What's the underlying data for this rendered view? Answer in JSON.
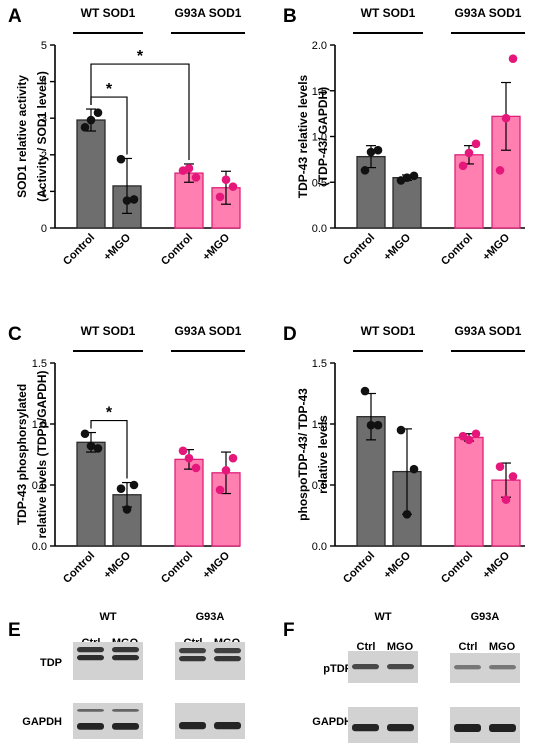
{
  "chart_data": [
    {
      "panel": "A",
      "type": "bar",
      "ylabel": [
        "SOD1 relative activity",
        "(Activity / SOD1 levels)"
      ],
      "ylim": [
        0,
        5
      ],
      "yticks": [
        "0",
        "1",
        "2",
        "3",
        "4",
        "5"
      ],
      "groups": [
        "WT SOD1",
        "G93A SOD1"
      ],
      "categories": [
        "Control",
        "+MGO",
        "Control",
        "+MGO"
      ],
      "values": [
        2.95,
        1.15,
        1.5,
        1.1
      ],
      "errors": [
        0.3,
        0.75,
        0.25,
        0.45
      ],
      "points": [
        [
          2.75,
          3.15,
          2.95
        ],
        [
          1.88,
          0.78,
          0.75
        ],
        [
          1.57,
          1.38,
          1.63
        ],
        [
          0.85,
          1.13,
          1.32
        ]
      ],
      "significance": [
        {
          "from": 0,
          "to": 1,
          "label": "*"
        },
        {
          "from": 0,
          "to": 2,
          "label": "*"
        }
      ],
      "colors": [
        "#6e6e6e",
        "#6e6e6e",
        "#ff80b0",
        "#ff80b0"
      ]
    },
    {
      "panel": "B",
      "type": "bar",
      "ylabel": [
        "TDP-43 relative levels",
        "(TDP-43/ GAPDH)"
      ],
      "ylim": [
        0,
        2
      ],
      "yticks": [
        "0.0",
        "0.5",
        "1.0",
        "1.5",
        "2.0"
      ],
      "groups": [
        "WT SOD1",
        "G93A SOD1"
      ],
      "categories": [
        "Control",
        "+MGO",
        "Control",
        "+MGO"
      ],
      "values": [
        0.78,
        0.55,
        0.8,
        1.22
      ],
      "errors": [
        0.12,
        0.03,
        0.1,
        0.37
      ],
      "points": [
        [
          0.63,
          0.85,
          0.83
        ],
        [
          0.52,
          0.57,
          0.55
        ],
        [
          0.68,
          0.92,
          0.82
        ],
        [
          0.63,
          1.85,
          1.2
        ]
      ],
      "significance": [],
      "colors": [
        "#6e6e6e",
        "#6e6e6e",
        "#ff80b0",
        "#ff80b0"
      ]
    },
    {
      "panel": "C",
      "type": "bar",
      "ylabel": [
        "TDP-43 phosphorsylated",
        "relative levels (TDPp/GAPDH)"
      ],
      "ylim": [
        0,
        1.5
      ],
      "yticks": [
        "0.0",
        "0.5",
        "1.0",
        "1.5"
      ],
      "groups": [
        "WT SOD1",
        "G93A SOD1"
      ],
      "categories": [
        "Control",
        "+MGO",
        "Control",
        "+MGO"
      ],
      "values": [
        0.85,
        0.42,
        0.71,
        0.6
      ],
      "errors": [
        0.08,
        0.1,
        0.08,
        0.17
      ],
      "points": [
        [
          0.92,
          0.8,
          0.82
        ],
        [
          0.47,
          0.5,
          0.3
        ],
        [
          0.78,
          0.64,
          0.72
        ],
        [
          0.46,
          0.72,
          0.62
        ]
      ],
      "significance": [
        {
          "from": 0,
          "to": 1,
          "label": "*"
        }
      ],
      "colors": [
        "#6e6e6e",
        "#6e6e6e",
        "#ff80b0",
        "#ff80b0"
      ]
    },
    {
      "panel": "D",
      "type": "bar",
      "ylabel": [
        "phospoTDP-43/ TDP-43",
        "relative levels"
      ],
      "ylim": [
        0,
        1.5
      ],
      "yticks": [
        "0.0",
        "0.5",
        "1.0",
        "1.5"
      ],
      "groups": [
        "WT SOD1",
        "G93A SOD1"
      ],
      "categories": [
        "Control",
        "+MGO",
        "Control",
        "+MGO"
      ],
      "values": [
        1.06,
        0.61,
        0.89,
        0.54
      ],
      "errors": [
        0.19,
        0.35,
        0.03,
        0.14
      ],
      "points": [
        [
          1.27,
          0.99,
          0.99
        ],
        [
          0.95,
          0.63,
          0.26
        ],
        [
          0.9,
          0.92,
          0.87
        ],
        [
          0.65,
          0.57,
          0.38
        ]
      ],
      "significance": [],
      "colors": [
        "#6e6e6e",
        "#6e6e6e",
        "#ff80b0",
        "#ff80b0"
      ]
    }
  ],
  "blots": [
    {
      "panel": "E",
      "groups": [
        "WT",
        "G93A"
      ],
      "lanes": [
        "Ctrl",
        "MGO"
      ],
      "rows": [
        {
          "label": "TDP",
          "bands": 2
        },
        {
          "label": "GAPDH",
          "bands": 1
        }
      ]
    },
    {
      "panel": "F",
      "groups": [
        "WT",
        "G93A"
      ],
      "lanes": [
        "Ctrl",
        "MGO"
      ],
      "rows": [
        {
          "label": "pTDP",
          "bands": 1
        },
        {
          "label": "GAPDH",
          "bands": 1
        }
      ]
    }
  ]
}
